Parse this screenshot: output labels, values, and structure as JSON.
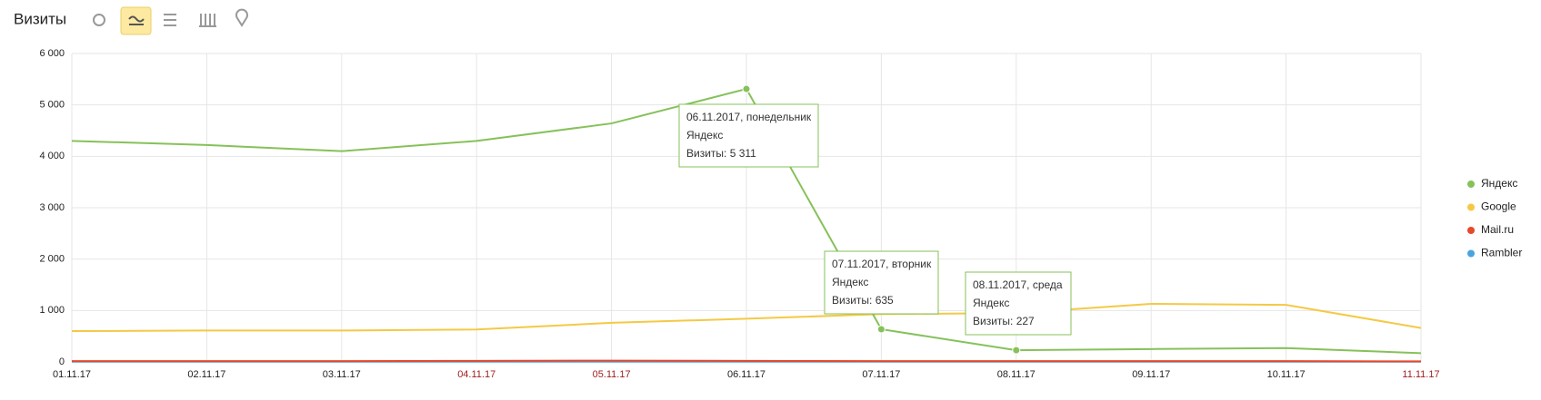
{
  "chart_data": {
    "type": "line",
    "title": "Визиты",
    "categories": [
      "01.11.17",
      "02.11.17",
      "03.11.17",
      "04.11.17",
      "05.11.17",
      "06.11.17",
      "07.11.17",
      "08.11.17",
      "09.11.17",
      "10.11.17",
      "11.11.17"
    ],
    "series": [
      {
        "name": "Яндекс",
        "color": "#86c15a",
        "values": [
          4300,
          4220,
          4100,
          4300,
          4640,
          5311,
          635,
          227,
          250,
          270,
          170
        ]
      },
      {
        "name": "Google",
        "color": "#f4c945",
        "values": [
          600,
          610,
          610,
          630,
          760,
          840,
          930,
          950,
          1130,
          1110,
          660
        ]
      },
      {
        "name": "Mail.ru",
        "color": "#e8472a",
        "values": [
          15,
          15,
          15,
          20,
          25,
          20,
          15,
          15,
          15,
          15,
          10
        ]
      },
      {
        "name": "Rambler",
        "color": "#4aa3df",
        "values": [
          5,
          5,
          5,
          5,
          5,
          5,
          5,
          5,
          5,
          5,
          5
        ]
      }
    ],
    "ylim": [
      0,
      6000
    ],
    "yticks": [
      0,
      {
        "value": 1000,
        "label": "1 000"
      },
      {
        "value": 2000,
        "label": "2 000"
      },
      {
        "value": 3000,
        "label": "3 000"
      },
      {
        "value": 4000,
        "label": "4 000"
      },
      {
        "value": 5000,
        "label": "5 000"
      },
      {
        "value": 6000,
        "label": "6 000"
      }
    ],
    "grid": true,
    "legend": "right",
    "annotations": [
      {
        "date": "06.11.2017, понедельник",
        "series": "Яндекс",
        "text": "Визиты: 5 311"
      },
      {
        "date": "07.11.2017, вторник",
        "series": "Яндекс",
        "text": "Визиты: 635"
      },
      {
        "date": "08.11.2017, среда",
        "series": "Яндекс",
        "text": "Визиты: 227"
      }
    ]
  }
}
